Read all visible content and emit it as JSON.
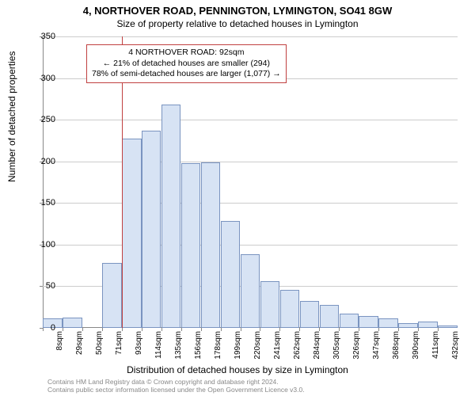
{
  "title": {
    "main": "4, NORTHOVER ROAD, PENNINGTON, LYMINGTON, SO41 8GW",
    "sub": "Size of property relative to detached houses in Lymington"
  },
  "chart": {
    "type": "histogram",
    "bar_fill": "#d7e3f4",
    "bar_stroke": "#7a94c0",
    "background": "#ffffff",
    "grid_color": "#cccccc",
    "axis_color": "#888888",
    "y": {
      "title": "Number of detached properties",
      "min": 0,
      "max": 350,
      "step": 50,
      "ticks": [
        0,
        50,
        100,
        150,
        200,
        250,
        300,
        350
      ]
    },
    "x": {
      "title": "Distribution of detached houses by size in Lymington",
      "tick_labels": [
        "8sqm",
        "29sqm",
        "50sqm",
        "71sqm",
        "93sqm",
        "114sqm",
        "135sqm",
        "156sqm",
        "178sqm",
        "199sqm",
        "220sqm",
        "241sqm",
        "262sqm",
        "284sqm",
        "305sqm",
        "326sqm",
        "347sqm",
        "368sqm",
        "390sqm",
        "411sqm",
        "432sqm"
      ]
    },
    "bars": [
      {
        "v": 11
      },
      {
        "v": 12
      },
      {
        "v": 0
      },
      {
        "v": 78
      },
      {
        "v": 227
      },
      {
        "v": 237
      },
      {
        "v": 268
      },
      {
        "v": 198
      },
      {
        "v": 199
      },
      {
        "v": 128
      },
      {
        "v": 88
      },
      {
        "v": 56
      },
      {
        "v": 46
      },
      {
        "v": 32
      },
      {
        "v": 28
      },
      {
        "v": 17
      },
      {
        "v": 14
      },
      {
        "v": 11
      },
      {
        "v": 6
      },
      {
        "v": 8
      },
      {
        "v": 3
      }
    ],
    "marker": {
      "at_bar_index": 4,
      "color": "#c04040"
    },
    "annotation": {
      "line1": "4 NORTHOVER ROAD: 92sqm",
      "line2": "← 21% of detached houses are smaller (294)",
      "line3": "78% of semi-detached houses are larger (1,077) →",
      "border_color": "#c04040",
      "fontsize": 10.5
    }
  },
  "footer": {
    "line1": "Contains HM Land Registry data © Crown copyright and database right 2024.",
    "line2": "Contains public sector information licensed under the Open Government Licence v3.0."
  }
}
